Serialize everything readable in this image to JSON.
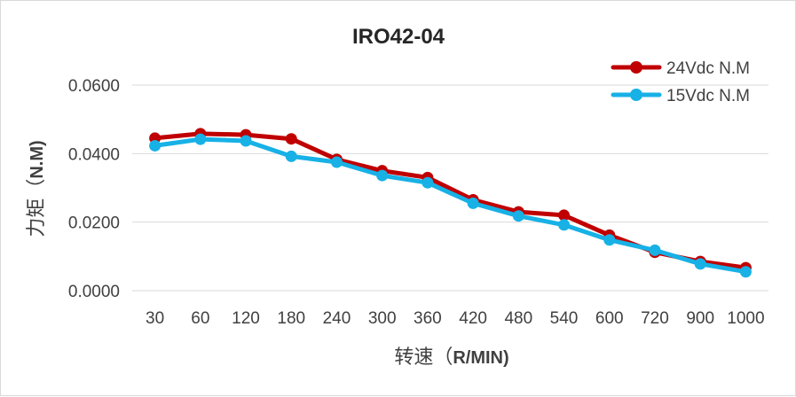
{
  "chart_data": {
    "type": "line",
    "title": "IRO42-04",
    "xlabel": "转速（R/MIN)",
    "ylabel": "力矩（N.M)",
    "categories": [
      "30",
      "60",
      "120",
      "180",
      "240",
      "300",
      "360",
      "420",
      "480",
      "540",
      "600",
      "720",
      "900",
      "1000"
    ],
    "ylim": [
      0,
      0.06
    ],
    "yticks": [
      "0.0000",
      "0.0200",
      "0.0400",
      "0.0600"
    ],
    "grid": true,
    "legend_position": "top-right",
    "series": [
      {
        "name": "24Vdc N.M",
        "color": "#c00000",
        "values": [
          0.0445,
          0.0458,
          0.0455,
          0.0443,
          0.0383,
          0.035,
          0.033,
          0.0265,
          0.023,
          0.022,
          0.0162,
          0.0112,
          0.0085,
          0.0067
        ]
      },
      {
        "name": "15Vdc N.M",
        "color": "#17b1e6",
        "values": [
          0.0423,
          0.0442,
          0.0437,
          0.0392,
          0.0375,
          0.0336,
          0.0315,
          0.0255,
          0.0218,
          0.0192,
          0.0148,
          0.0118,
          0.0078,
          0.0055
        ]
      }
    ]
  }
}
